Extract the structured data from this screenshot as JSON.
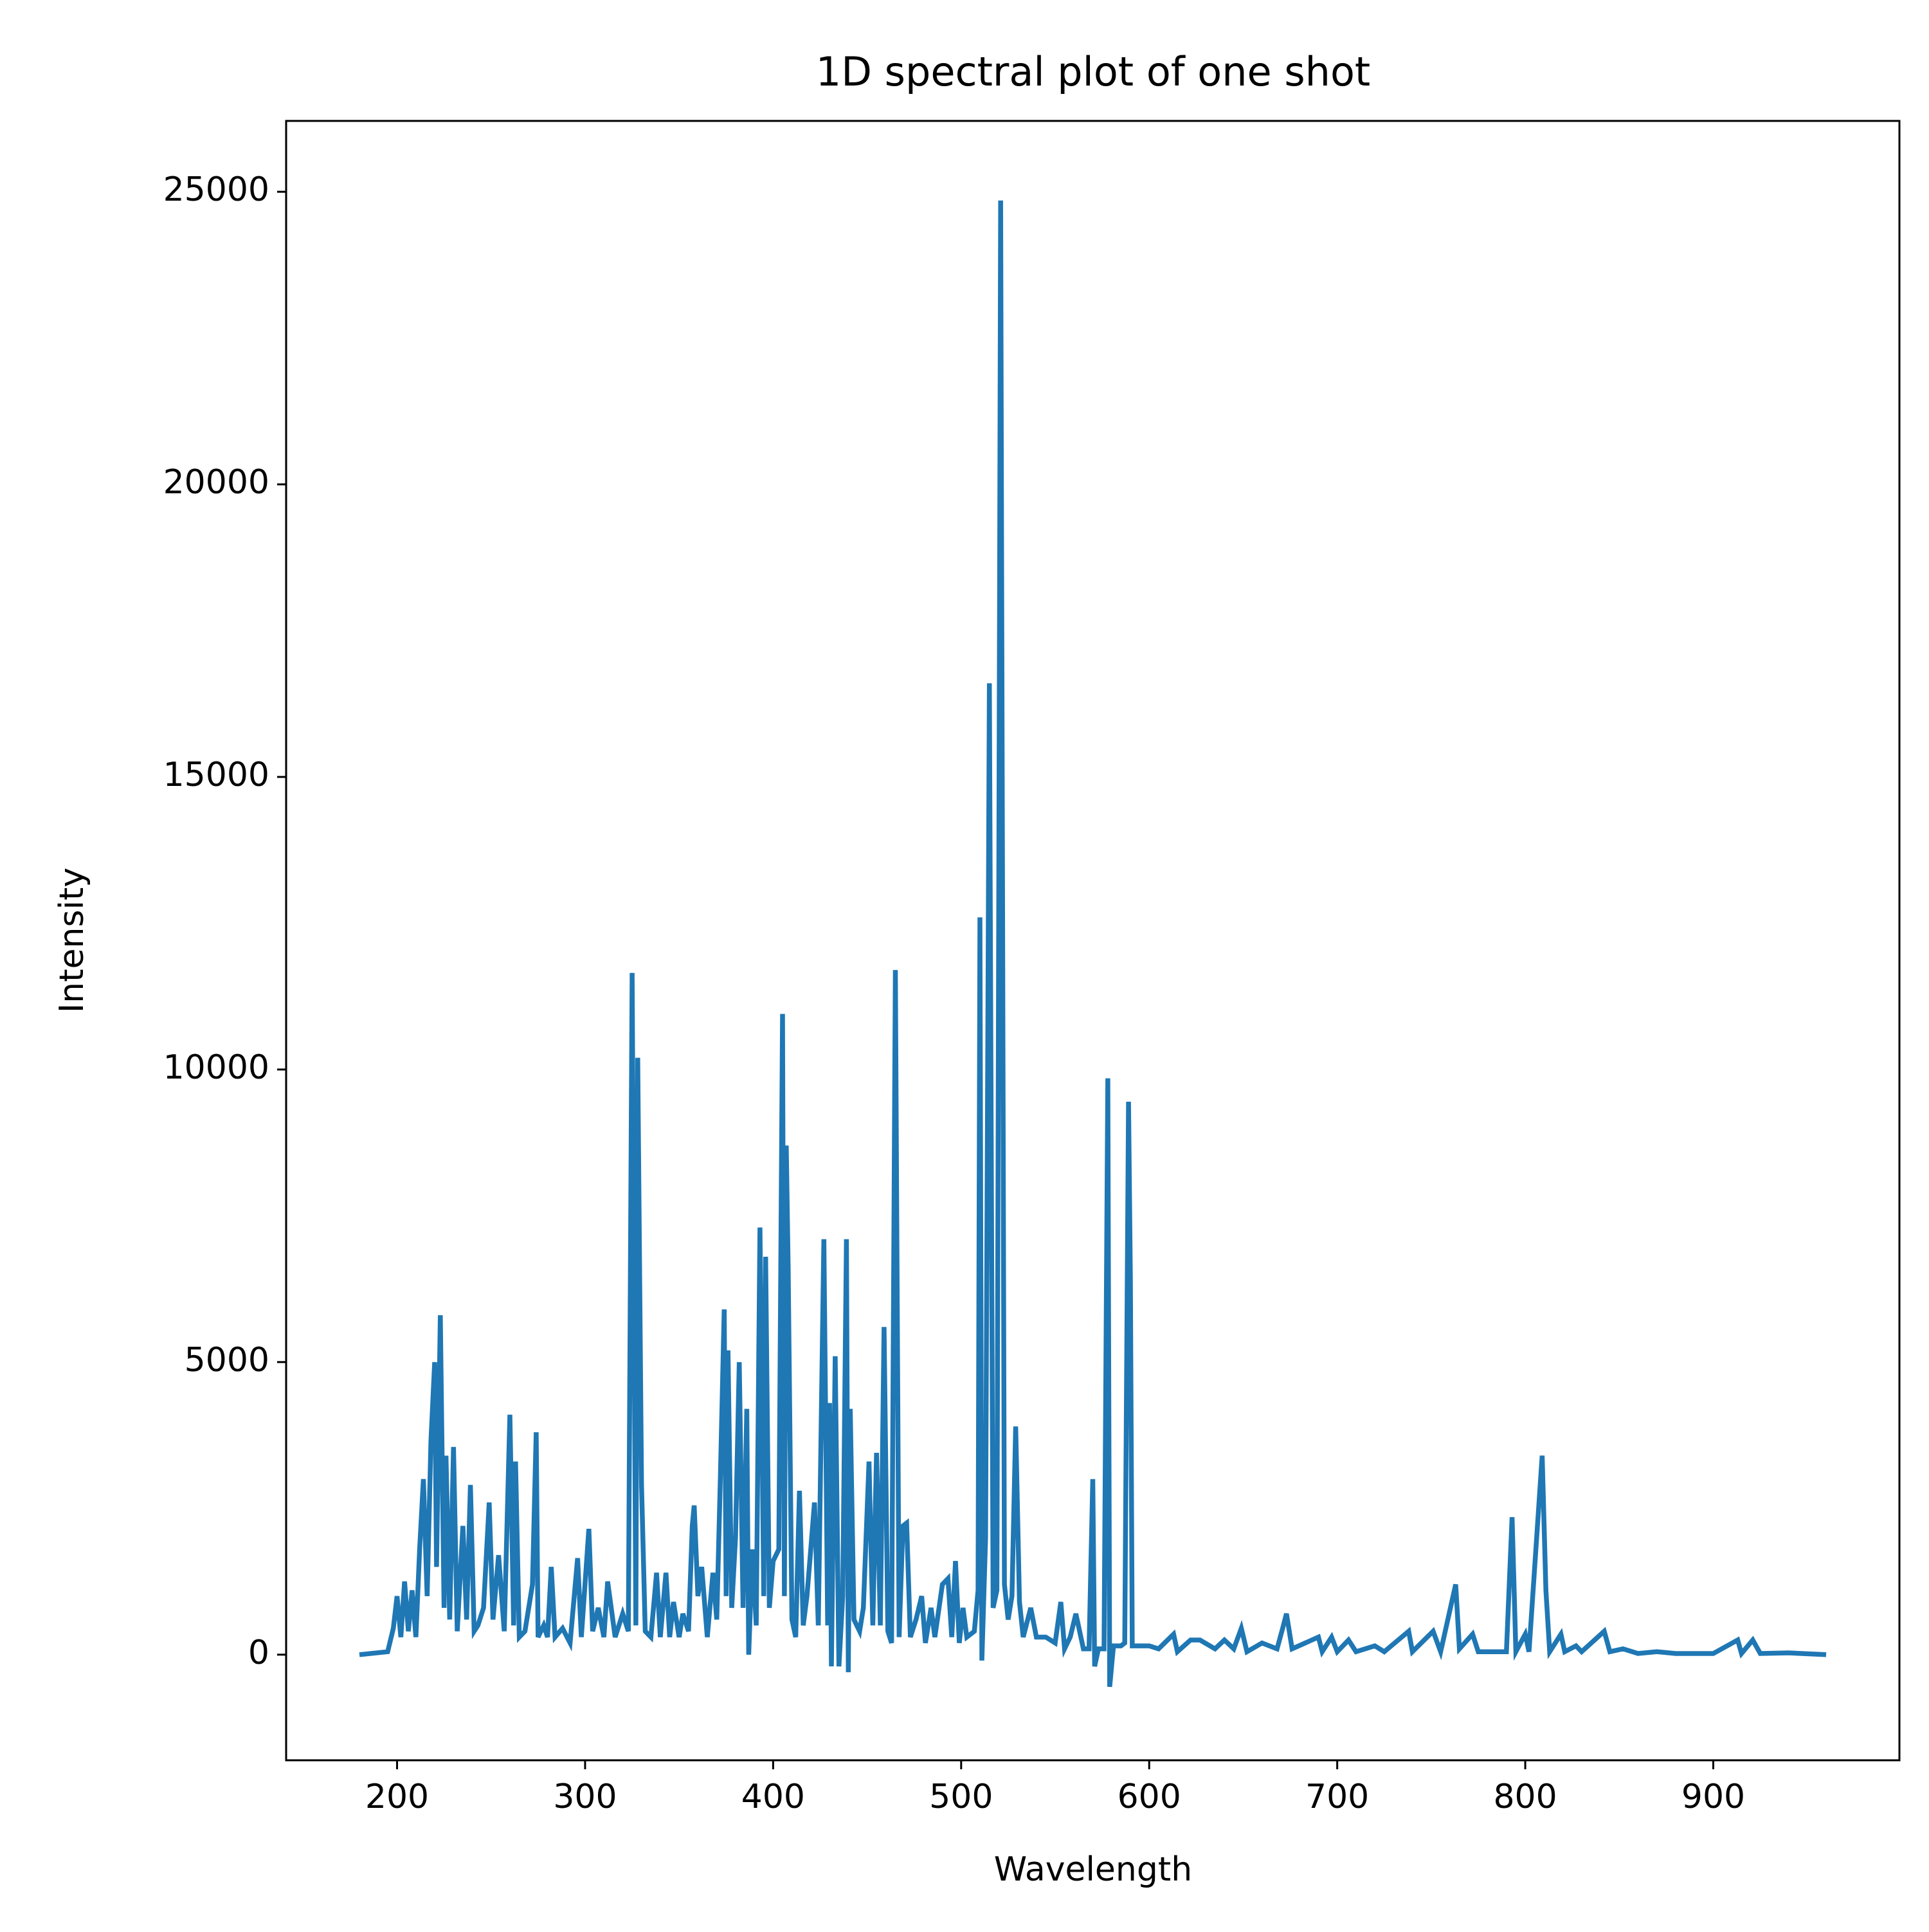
{
  "chart_data": {
    "type": "line",
    "title": "1D spectral plot of one shot",
    "x_label": "Wavelength",
    "y_label": "Intensity",
    "color": "#1f77b4",
    "xlim": [
      141,
      999
    ],
    "ylim": [
      -1805,
      26211
    ],
    "xticks": [
      200,
      300,
      400,
      500,
      600,
      700,
      800,
      900
    ],
    "yticks": [
      0,
      5000,
      10000,
      15000,
      20000,
      25000
    ],
    "x": [
      180,
      195,
      198,
      200,
      202,
      204,
      206,
      208,
      210,
      212,
      214,
      216,
      218,
      220,
      221,
      223,
      225,
      226,
      228,
      230,
      232,
      235,
      237,
      239,
      241,
      243,
      246,
      249,
      251,
      254,
      257,
      260,
      262,
      263,
      265,
      268,
      272,
      274,
      275,
      278,
      280,
      282,
      284,
      288,
      292,
      296,
      298,
      302,
      304,
      307,
      310,
      312,
      316,
      320,
      323,
      325,
      327,
      328,
      330,
      332,
      335,
      338,
      340,
      343,
      345,
      347,
      350,
      352,
      355,
      357,
      358,
      360,
      362,
      365,
      368,
      370,
      372,
      374,
      375,
      376,
      378,
      380,
      382,
      384,
      386,
      387,
      389,
      391,
      393,
      395,
      396,
      398,
      400,
      403,
      405,
      406,
      407,
      408,
      410,
      412,
      414,
      416,
      418,
      420,
      422,
      424,
      427,
      429,
      430,
      431,
      433,
      435,
      437,
      439,
      440,
      441,
      443,
      446,
      448,
      451,
      453,
      455,
      457,
      459,
      461,
      463,
      465,
      467,
      469,
      471,
      473,
      476,
      479,
      481,
      484,
      486,
      490,
      493,
      495,
      497,
      499,
      501,
      503,
      507,
      509,
      510,
      511,
      513,
      515,
      517,
      519,
      521,
      523,
      525,
      527,
      529,
      531,
      533,
      537,
      540,
      545,
      550,
      553,
      555,
      558,
      561,
      565,
      568,
      570,
      571,
      573,
      576,
      578,
      579,
      581,
      585,
      587,
      589,
      590,
      591,
      600,
      605,
      613,
      615,
      622,
      627,
      635,
      640,
      645,
      649,
      652,
      660,
      668,
      671,
      673,
      676,
      690,
      692,
      697,
      700,
      706,
      710,
      720,
      725,
      738,
      740,
      751,
      755,
      763,
      765,
      772,
      775,
      790,
      793,
      795,
      800,
      802,
      809,
      811,
      813,
      819,
      821,
      827,
      830,
      842,
      845,
      852,
      860,
      870,
      880,
      900,
      913,
      915,
      921,
      925,
      940,
      960
    ],
    "values": [
      0,
      50,
      450,
      1000,
      300,
      1250,
      400,
      1100,
      300,
      1800,
      3000,
      1000,
      3650,
      5000,
      1500,
      5800,
      800,
      3400,
      600,
      3550,
      400,
      2200,
      600,
      2900,
      400,
      500,
      800,
      2600,
      600,
      1700,
      400,
      4100,
      500,
      3300,
      300,
      400,
      1200,
      3800,
      300,
      500,
      300,
      1500,
      300,
      450,
      200,
      1650,
      300,
      2150,
      400,
      800,
      300,
      1250,
      300,
      700,
      400,
      11650,
      500,
      10200,
      2900,
      400,
      300,
      1400,
      300,
      1400,
      300,
      900,
      300,
      700,
      400,
      2200,
      2550,
      1000,
      1500,
      300,
      1400,
      600,
      3100,
      5900,
      1000,
      5200,
      800,
      2000,
      5000,
      800,
      4200,
      0,
      1800,
      500,
      7300,
      1000,
      6800,
      800,
      1600,
      1800,
      10950,
      1000,
      8700,
      6600,
      600,
      300,
      2800,
      500,
      1000,
      1800,
      2600,
      500,
      7100,
      500,
      4300,
      -200,
      5100,
      -200,
      1000,
      7100,
      -300,
      4200,
      600,
      400,
      800,
      3300,
      500,
      3450,
      500,
      5600,
      400,
      200,
      11700,
      300,
      2200,
      2250,
      300,
      600,
      1000,
      200,
      800,
      300,
      1200,
      1300,
      300,
      1600,
      200,
      800,
      300,
      400,
      1100,
      12600,
      -100,
      2000,
      16600,
      800,
      1100,
      24850,
      1200,
      600,
      1000,
      3900,
      900,
      300,
      800,
      300,
      300,
      200,
      900,
      100,
      300,
      700,
      100,
      100,
      3000,
      -200,
      100,
      100,
      9850,
      -550,
      150,
      150,
      200,
      9450,
      6400,
      150,
      150,
      100,
      350,
      50,
      250,
      250,
      100,
      250,
      100,
      450,
      50,
      200,
      100,
      450,
      700,
      100,
      300,
      50,
      300,
      50,
      250,
      50,
      150,
      50,
      400,
      50,
      400,
      50,
      1200,
      100,
      350,
      50,
      50,
      2350,
      50,
      350,
      50,
      3400,
      1100,
      50,
      350,
      50,
      150,
      50,
      400,
      50,
      100,
      20,
      50,
      20,
      20,
      250,
      20,
      250,
      20,
      30,
      0
    ]
  }
}
